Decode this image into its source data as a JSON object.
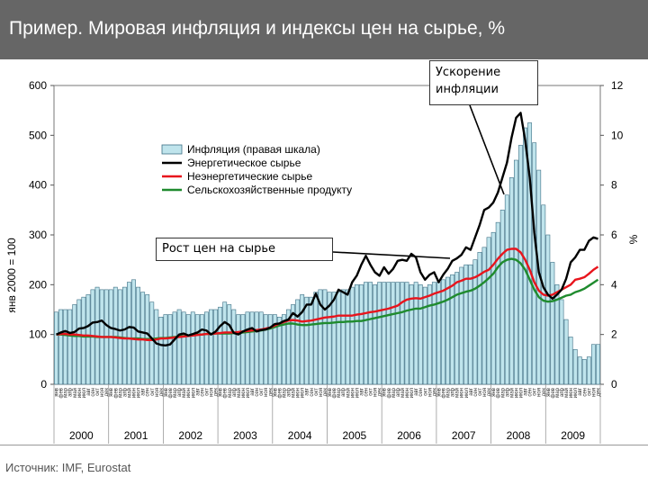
{
  "header": {
    "title": "Пример. Мировая инфляция и индексы цен на сырье, %"
  },
  "footer": {
    "source": "Источник: IMF, Eurostat"
  },
  "callouts": {
    "acceleration": "Ускорение инфляции",
    "growth": "Рост цен на сырье"
  },
  "colors": {
    "bars_fill": "#bfe4ec",
    "bars_stroke": "#3d6f84",
    "energy": "#000000",
    "nonenergy": "#e8141c",
    "agri": "#1f8b2e"
  },
  "chart_data": {
    "type": "bar",
    "ylabel_left": "янв 2000 = 100",
    "ylabel_right": "%",
    "ylim_left": [
      0,
      600
    ],
    "ylim_right": [
      0,
      12
    ],
    "yticks_left": [
      "0",
      "100",
      "200",
      "300",
      "400",
      "500",
      "600"
    ],
    "yticks_right": [
      "0",
      "2",
      "4",
      "6",
      "8",
      "10",
      "12"
    ],
    "years": [
      "2000",
      "2001",
      "2002",
      "2003",
      "2004",
      "2005",
      "2006",
      "2007",
      "2008",
      "2009"
    ],
    "month_labels": [
      "янв",
      "фев",
      "мар",
      "апр",
      "май",
      "июн",
      "июл",
      "авг",
      "сен",
      "окт",
      "ноя",
      "дек"
    ],
    "legend": [
      "Инфляция (правая шкала)",
      "Энергетическое сырье",
      "Неэнергетические сырье",
      "Сельскохозяйственные продукту"
    ],
    "inflation_yearly": [
      [
        2.9,
        3.0,
        3.0,
        3.0,
        3.2,
        3.4,
        3.5,
        3.6,
        3.8,
        3.9,
        3.8,
        3.8
      ],
      [
        3.8,
        3.9,
        3.8,
        3.9,
        4.1,
        4.2,
        3.9,
        3.7,
        3.6,
        3.3,
        3.0,
        2.7
      ],
      [
        2.8,
        2.8,
        2.9,
        3.0,
        2.9,
        2.8,
        2.9,
        2.8,
        2.8,
        2.9,
        3.0,
        3.0
      ],
      [
        3.1,
        3.3,
        3.2,
        3.0,
        2.8,
        2.8,
        2.9,
        2.9,
        2.9,
        2.9,
        2.8,
        2.8
      ],
      [
        2.8,
        2.7,
        2.8,
        3.0,
        3.2,
        3.4,
        3.6,
        3.5,
        3.5,
        3.7,
        3.8,
        3.8
      ],
      [
        3.7,
        3.7,
        3.7,
        3.8,
        3.8,
        3.9,
        4.0,
        4.0,
        4.1,
        4.1,
        4.0,
        4.1
      ],
      [
        4.1,
        4.1,
        4.1,
        4.1,
        4.1,
        4.1,
        4.0,
        4.1,
        4.0,
        3.9,
        4.0,
        4.1
      ],
      [
        4.1,
        4.2,
        4.3,
        4.4,
        4.5,
        4.7,
        4.8,
        4.8,
        5.0,
        5.3,
        5.5,
        5.9
      ],
      [
        6.1,
        6.5,
        7.0,
        7.6,
        8.3,
        9.0,
        9.6,
        10.3,
        10.5,
        9.7,
        8.6,
        7.2
      ],
      [
        6.0,
        4.9,
        4.0,
        3.4,
        2.6,
        1.9,
        1.4,
        1.1,
        1.0,
        1.1,
        1.6,
        1.6
      ]
    ],
    "energy_yearly": [
      [
        100,
        104,
        107,
        103,
        105,
        112,
        113,
        117,
        124,
        125,
        128,
        119
      ],
      [
        113,
        111,
        108,
        110,
        115,
        114,
        106,
        104,
        102,
        92,
        82,
        79
      ],
      [
        78,
        80,
        90,
        100,
        102,
        98,
        101,
        104,
        110,
        108,
        100,
        106
      ],
      [
        117,
        125,
        119,
        103,
        100,
        106,
        110,
        113,
        106,
        109,
        110,
        114
      ],
      [
        121,
        122,
        127,
        130,
        143,
        136,
        145,
        160,
        160,
        182,
        160,
        150
      ],
      [
        158,
        170,
        190,
        185,
        180,
        205,
        218,
        240,
        258,
        240,
        225,
        218
      ],
      [
        235,
        222,
        232,
        248,
        250,
        248,
        262,
        255,
        225,
        210,
        220,
        225
      ],
      [
        205,
        220,
        232,
        248,
        253,
        260,
        275,
        270,
        295,
        320,
        350,
        355
      ],
      [
        365,
        385,
        415,
        445,
        495,
        535,
        545,
        490,
        415,
        305,
        225,
        195
      ],
      [
        180,
        172,
        180,
        190,
        212,
        245,
        255,
        270,
        270,
        288,
        295,
        292
      ]
    ],
    "nonenergy_yearly": [
      [
        100,
        101,
        101,
        100,
        100,
        99,
        98,
        98,
        97,
        96,
        95,
        95
      ],
      [
        95,
        94,
        93,
        92,
        92,
        91,
        90,
        90,
        89,
        89,
        90,
        92
      ],
      [
        92,
        93,
        94,
        95,
        96,
        97,
        98,
        99,
        100,
        101,
        101,
        102
      ],
      [
        103,
        104,
        104,
        104,
        105,
        106,
        107,
        108,
        109,
        110,
        112,
        114
      ],
      [
        118,
        122,
        125,
        128,
        129,
        128,
        126,
        127,
        128,
        130,
        132,
        134
      ],
      [
        135,
        136,
        138,
        138,
        138,
        138,
        140,
        141,
        143,
        145,
        146,
        148
      ],
      [
        150,
        152,
        155,
        158,
        165,
        170,
        172,
        173,
        172,
        175,
        178,
        182
      ],
      [
        185,
        188,
        193,
        198,
        205,
        208,
        212,
        212,
        215,
        220,
        226,
        230
      ],
      [
        240,
        252,
        262,
        270,
        272,
        272,
        265,
        250,
        230,
        205,
        188,
        180
      ],
      [
        178,
        180,
        185,
        190,
        195,
        200,
        210,
        212,
        215,
        222,
        230,
        236
      ]
    ],
    "agri_yearly": [
      [
        100,
        100,
        99,
        98,
        97,
        97,
        96,
        96,
        96,
        95,
        95,
        95
      ],
      [
        95,
        95,
        94,
        93,
        92,
        92,
        92,
        91,
        91,
        91,
        92,
        93
      ],
      [
        93,
        94,
        95,
        96,
        97,
        98,
        99,
        100,
        100,
        101,
        101,
        102
      ],
      [
        102,
        102,
        102,
        103,
        103,
        104,
        105,
        106,
        107,
        108,
        110,
        112
      ],
      [
        115,
        118,
        120,
        122,
        122,
        120,
        119,
        119,
        120,
        121,
        122,
        123
      ],
      [
        123,
        124,
        125,
        125,
        126,
        126,
        127,
        127,
        129,
        131,
        133,
        135
      ],
      [
        137,
        139,
        141,
        143,
        145,
        148,
        150,
        152,
        152,
        155,
        158,
        160
      ],
      [
        163,
        166,
        170,
        175,
        180,
        183,
        186,
        188,
        192,
        198,
        205,
        213
      ],
      [
        222,
        235,
        245,
        250,
        252,
        250,
        243,
        230,
        210,
        190,
        175,
        168
      ],
      [
        166,
        167,
        170,
        174,
        178,
        180,
        185,
        188,
        192,
        198,
        204,
        210
      ]
    ]
  }
}
